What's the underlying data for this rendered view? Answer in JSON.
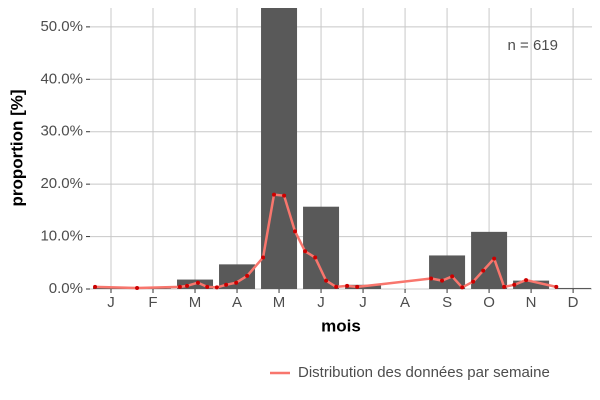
{
  "chart_data": {
    "type": "bar",
    "x_label": "mois",
    "y_label": "proportion [%]",
    "annotation": "n = 619",
    "categories": [
      "J",
      "F",
      "M",
      "A",
      "M",
      "J",
      "J",
      "A",
      "S",
      "O",
      "N",
      "D"
    ],
    "values": [
      0.3,
      0.1,
      1.8,
      4.7,
      54,
      15.7,
      0.8,
      0,
      6.4,
      10.9,
      1.6,
      0.2
    ],
    "color": "#595959",
    "ylim": [
      0,
      53.6
    ],
    "yticks": [
      {
        "value": 0,
        "label": "0.0%"
      },
      {
        "value": 10,
        "label": "10.0%"
      },
      {
        "value": 20,
        "label": "20.0%"
      },
      {
        "value": 30,
        "label": "30.0%"
      },
      {
        "value": 40,
        "label": "40.0%"
      },
      {
        "value": 50,
        "label": "50.0%"
      }
    ],
    "xlim": [
      0.5,
      12.45
    ],
    "grid": true,
    "legend": "bottom-right",
    "overlay": {
      "type": "line",
      "name": "Distribution des données par semaine",
      "color": "#f8766d",
      "point_color": "#cc0000",
      "x": [
        0.62,
        1.62,
        2.64,
        2.81,
        3.07,
        3.29,
        3.52,
        3.74,
        3.98,
        4.24,
        4.62,
        4.88,
        5.12,
        5.38,
        5.62,
        5.86,
        6.12,
        6.36,
        6.62,
        6.86,
        8.62,
        8.88,
        9.12,
        9.36,
        9.62,
        9.86,
        10.12,
        10.36,
        10.6,
        10.88,
        11.6
      ],
      "values": [
        0.4,
        0.2,
        0.4,
        0.6,
        1.2,
        0.4,
        0.3,
        0.8,
        1.2,
        2.5,
        6.0,
        18.0,
        17.8,
        11.0,
        7.2,
        6.0,
        1.6,
        0.4,
        0.6,
        0.4,
        2.0,
        1.6,
        2.4,
        0.3,
        1.4,
        3.5,
        5.8,
        0.4,
        0.8,
        1.7,
        0.4
      ]
    }
  }
}
